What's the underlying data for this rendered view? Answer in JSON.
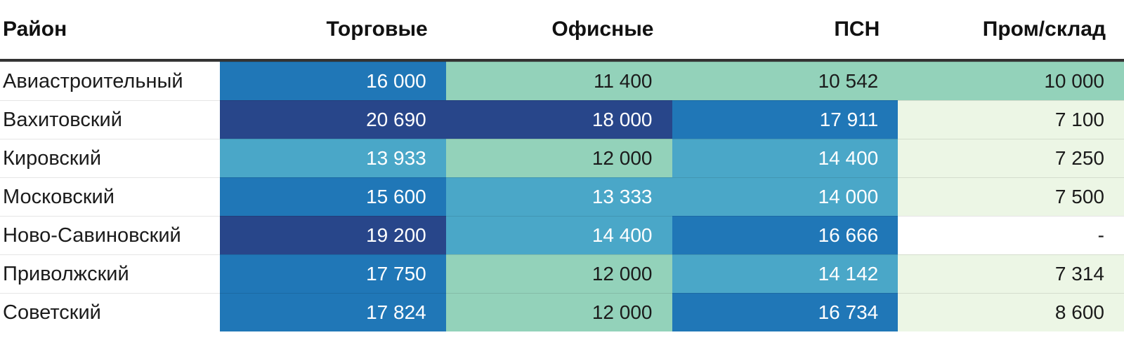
{
  "palette": {
    "high": "#28468a",
    "mid_high": "#2077b7",
    "mid": "#4aa7c8",
    "mid_low": "#93d2ba",
    "low": "#ecf6e5",
    "empty": "#ffffff",
    "header_border": "#333333"
  },
  "table": {
    "columns": [
      {
        "label": "Район"
      },
      {
        "label": "Торговые"
      },
      {
        "label": "Офисные"
      },
      {
        "label": "ПСН"
      },
      {
        "label": "Пром/склад"
      }
    ],
    "rows": [
      {
        "district": "Авиастроительный",
        "cells": [
          {
            "value": "16 000",
            "tone": "blue"
          },
          {
            "value": "11 400",
            "tone": "green"
          },
          {
            "value": "10 542",
            "tone": "green"
          },
          {
            "value": "10 000",
            "tone": "green"
          }
        ]
      },
      {
        "district": "Вахитовский",
        "cells": [
          {
            "value": "20 690",
            "tone": "navy"
          },
          {
            "value": "18 000",
            "tone": "navy"
          },
          {
            "value": "17 911",
            "tone": "blue"
          },
          {
            "value": "7 100",
            "tone": "palegreen"
          }
        ]
      },
      {
        "district": "Кировский",
        "cells": [
          {
            "value": "13 933",
            "tone": "lightblue"
          },
          {
            "value": "12 000",
            "tone": "green"
          },
          {
            "value": "14 400",
            "tone": "lightblue"
          },
          {
            "value": "7 250",
            "tone": "palegreen"
          }
        ]
      },
      {
        "district": "Московский",
        "cells": [
          {
            "value": "15 600",
            "tone": "blue"
          },
          {
            "value": "13 333",
            "tone": "lightblue"
          },
          {
            "value": "14 000",
            "tone": "lightblue"
          },
          {
            "value": "7 500",
            "tone": "palegreen"
          }
        ]
      },
      {
        "district": "Ново-Савиновский",
        "cells": [
          {
            "value": "19 200",
            "tone": "navy"
          },
          {
            "value": "14 400",
            "tone": "lightblue"
          },
          {
            "value": "16 666",
            "tone": "blue"
          },
          {
            "value": "-",
            "tone": "none"
          }
        ]
      },
      {
        "district": "Приволжский",
        "cells": [
          {
            "value": "17 750",
            "tone": "blue"
          },
          {
            "value": "12 000",
            "tone": "green"
          },
          {
            "value": "14 142",
            "tone": "lightblue"
          },
          {
            "value": "7 314",
            "tone": "palegreen"
          }
        ]
      },
      {
        "district": "Советский",
        "cells": [
          {
            "value": "17 824",
            "tone": "blue"
          },
          {
            "value": "12 000",
            "tone": "green"
          },
          {
            "value": "16 734",
            "tone": "blue"
          },
          {
            "value": "8 600",
            "tone": "palegreen"
          }
        ]
      }
    ]
  },
  "chart_data": {
    "type": "heatmap",
    "title": "",
    "row_header": "Район",
    "rows": [
      "Авиастроительный",
      "Вахитовский",
      "Кировский",
      "Московский",
      "Ново-Савиновский",
      "Приволжский",
      "Советский"
    ],
    "columns": [
      "Торговые",
      "Офисные",
      "ПСН",
      "Пром/склад"
    ],
    "values": [
      [
        16000,
        11400,
        10542,
        10000
      ],
      [
        20690,
        18000,
        17911,
        7100
      ],
      [
        13933,
        12000,
        14400,
        7250
      ],
      [
        15600,
        13333,
        14000,
        7500
      ],
      [
        19200,
        14400,
        16666,
        null
      ],
      [
        17750,
        12000,
        14142,
        7314
      ],
      [
        17824,
        12000,
        16734,
        8600
      ]
    ],
    "color_scale": "light-green (low) → green → light-blue → blue → dark-navy (high); blank = white",
    "legend_position": "none",
    "grid": false
  }
}
